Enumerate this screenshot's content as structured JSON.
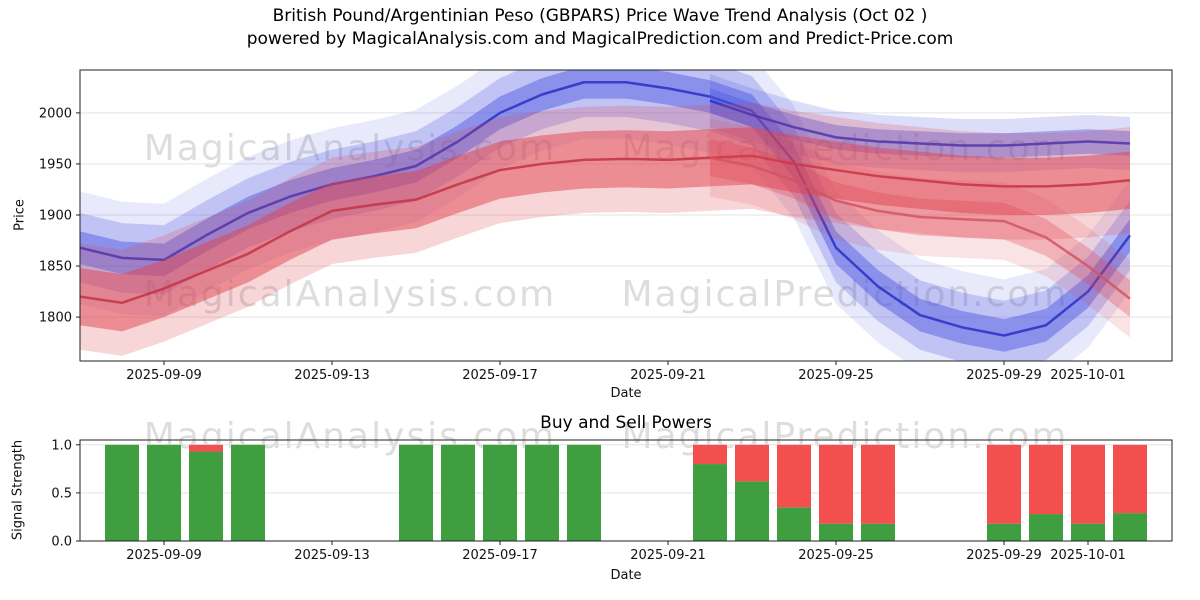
{
  "title": {
    "line1": "British Pound/Argentinian Peso (GBPARS) Price Wave Trend Analysis (Oct 02 )",
    "line2": "powered by MagicalAnalysis.com and MagicalPrediction.com and Predict-Price.com"
  },
  "watermarks": {
    "left": "MagicalAnalysis.com",
    "right": "MagicalPrediction.com"
  },
  "chart_data": [
    {
      "type": "area",
      "title": "",
      "xlabel": "Date",
      "ylabel": "Price",
      "x_domain": [
        "2025-09-07",
        "2025-10-03"
      ],
      "x_tick_labels": [
        "2025-09-09",
        "2025-09-13",
        "2025-09-17",
        "2025-09-21",
        "2025-09-25",
        "2025-09-29",
        "2025-10-01"
      ],
      "ylim": [
        1757,
        2042
      ],
      "y_ticks": [
        1800,
        1850,
        1900,
        1950,
        2000
      ],
      "grid": "horizontal",
      "series": [
        {
          "name": "blue-uptrend",
          "color": "#4a55e0",
          "line_color": "#2a2fc4",
          "x0": "2025-09-07",
          "values": [
            1868,
            1858,
            1856,
            1880,
            1902,
            1918,
            1930,
            1938,
            1948,
            1972,
            2000,
            2018,
            2030,
            2030,
            2024,
            2016,
            2002,
            1952,
            1868,
            1830,
            1802,
            1790,
            1782,
            1792,
            1825,
            1880
          ],
          "band_widths": [
            16,
            34,
            55
          ],
          "band_opacities": [
            0.45,
            0.25,
            0.13
          ]
        },
        {
          "name": "blue-flat",
          "color": "#4a55e0",
          "line_color": "#2a2fc4",
          "x0": "2025-09-22",
          "values": [
            2012,
            1998,
            1986,
            1976,
            1972,
            1970,
            1968,
            1968,
            1970,
            1972,
            1970
          ],
          "band_widths": [
            12,
            26
          ],
          "band_opacities": [
            0.4,
            0.2
          ]
        },
        {
          "name": "red-main",
          "color": "#e0434f",
          "line_color": "#c23344",
          "x0": "2025-09-07",
          "values": [
            1820,
            1814,
            1828,
            1845,
            1862,
            1884,
            1904,
            1910,
            1915,
            1930,
            1944,
            1950,
            1954,
            1955,
            1954,
            1956,
            1958,
            1950,
            1944,
            1938,
            1934,
            1930,
            1928,
            1928,
            1930,
            1934
          ],
          "band_widths": [
            28,
            52
          ],
          "band_opacities": [
            0.5,
            0.22
          ]
        },
        {
          "name": "red-secondary",
          "color": "#e0434f",
          "line_color": "#d05560",
          "x0": "2025-09-22",
          "values": [
            1956,
            1948,
            1934,
            1914,
            1904,
            1898,
            1896,
            1894,
            1878,
            1850,
            1818
          ],
          "band_widths": [
            18,
            38
          ],
          "band_opacities": [
            0.3,
            0.15
          ]
        }
      ]
    },
    {
      "type": "bar",
      "title": "Buy and Sell Powers",
      "xlabel": "Date",
      "ylabel": "Signal Strength",
      "x_domain": [
        "2025-09-07",
        "2025-10-03"
      ],
      "x_tick_labels": [
        "2025-09-09",
        "2025-09-13",
        "2025-09-17",
        "2025-09-21",
        "2025-09-25",
        "2025-09-29",
        "2025-10-01"
      ],
      "ylim": [
        0,
        1.05
      ],
      "y_ticks": [
        0.0,
        0.5,
        1.0
      ],
      "colors": {
        "buy": "#3f9e3f",
        "sell": "#f44f4f"
      },
      "bars": [
        {
          "date": "2025-09-08",
          "buy": 1.0,
          "sell": 0.0
        },
        {
          "date": "2025-09-09",
          "buy": 1.0,
          "sell": 0.0
        },
        {
          "date": "2025-09-10",
          "buy": 0.93,
          "sell": 0.07
        },
        {
          "date": "2025-09-11",
          "buy": 1.0,
          "sell": 0.0
        },
        {
          "date": "2025-09-15",
          "buy": 1.0,
          "sell": 0.0
        },
        {
          "date": "2025-09-16",
          "buy": 1.0,
          "sell": 0.0
        },
        {
          "date": "2025-09-17",
          "buy": 1.0,
          "sell": 0.0
        },
        {
          "date": "2025-09-18",
          "buy": 1.0,
          "sell": 0.0
        },
        {
          "date": "2025-09-19",
          "buy": 1.0,
          "sell": 0.0
        },
        {
          "date": "2025-09-22",
          "buy": 0.8,
          "sell": 0.2
        },
        {
          "date": "2025-09-23",
          "buy": 0.62,
          "sell": 0.38
        },
        {
          "date": "2025-09-24",
          "buy": 0.35,
          "sell": 0.65
        },
        {
          "date": "2025-09-25",
          "buy": 0.18,
          "sell": 0.82
        },
        {
          "date": "2025-09-26",
          "buy": 0.18,
          "sell": 0.82
        },
        {
          "date": "2025-09-29",
          "buy": 0.18,
          "sell": 0.82
        },
        {
          "date": "2025-09-30",
          "buy": 0.28,
          "sell": 0.72
        },
        {
          "date": "2025-10-01",
          "buy": 0.18,
          "sell": 0.82
        },
        {
          "date": "2025-10-02",
          "buy": 0.29,
          "sell": 0.71
        }
      ]
    }
  ]
}
